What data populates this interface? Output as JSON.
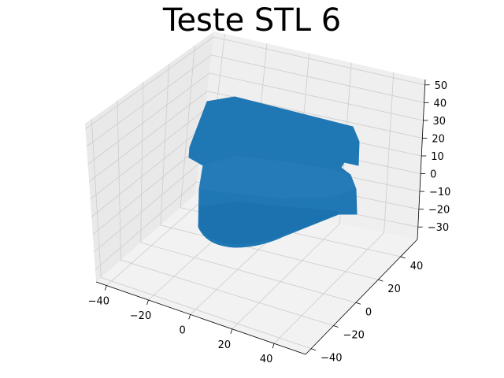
{
  "title": "Teste STL 6",
  "chart_data": {
    "type": "surface3d",
    "title": "Teste STL 6",
    "grid": true,
    "series": [
      {
        "color": "#1f77b4"
      }
    ],
    "x_axis": {
      "range": [
        -45,
        55
      ],
      "ticks": [
        -40,
        -20,
        0,
        20,
        40
      ],
      "tick_labels": [
        "−40",
        "−20",
        "0",
        "20",
        "40"
      ]
    },
    "y_axis": {
      "range": [
        -45,
        55
      ],
      "ticks": [
        -40,
        -20,
        0,
        20,
        40
      ],
      "tick_labels": [
        "−40",
        "−20",
        "0",
        "20",
        "40"
      ]
    },
    "z_axis": {
      "range": [
        -37,
        53
      ],
      "ticks": [
        -30,
        -20,
        -10,
        0,
        10,
        20,
        30,
        40,
        50
      ],
      "tick_labels": [
        "−30",
        "−20",
        "−10",
        "0",
        "10",
        "20",
        "30",
        "40",
        "50"
      ]
    },
    "pane_color": "#f2f2f2",
    "grid_color": "#cccccc"
  }
}
